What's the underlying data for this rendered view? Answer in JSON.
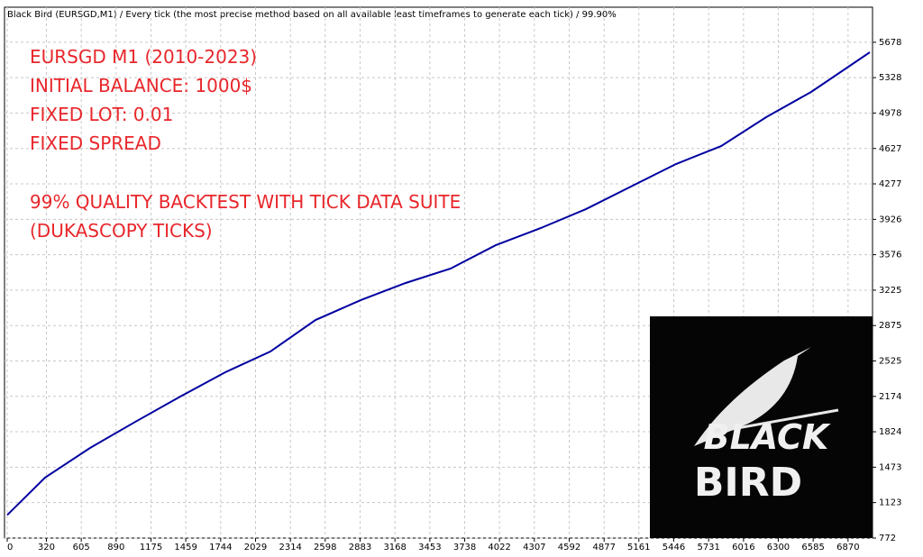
{
  "chart_data": {
    "type": "line",
    "title": "Black Bird (EURSGD,M1) / Every tick (the most precise method based on all available least timeframes to generate each tick) / 99.90%",
    "annotations": [
      "EURSGD M1 (2010-2023)",
      "INITIAL BALANCE: 1000$",
      "FIXED LOT: 0.01",
      "FIXED SPREAD",
      "99% QUALITY BACKTEST WITH TICK DATA SUITE",
      "(DUKASCOPY TICKS)"
    ],
    "logo": [
      "BLACK",
      "BIRD"
    ],
    "x": [
      0,
      309,
      677,
      1046,
      1414,
      1782,
      2150,
      2519,
      2887,
      3255,
      3623,
      3991,
      4360,
      4728,
      5096,
      5464,
      5833,
      6201,
      6569,
      7048
    ],
    "series": [
      {
        "color": "#0000a0",
        "values": [
          1000,
          1370,
          1664,
          1922,
          2172,
          2413,
          2618,
          2930,
          3126,
          3296,
          3439,
          3670,
          3840,
          4027,
          4250,
          4473,
          4651,
          4937,
          5187,
          5579
        ]
      }
    ],
    "xlim": [
      0,
      7070
    ],
    "xticks": [
      0,
      320,
      605,
      890,
      1175,
      1459,
      1744,
      2029,
      2314,
      2598,
      2883,
      3168,
      3453,
      3738,
      4022,
      4307,
      4592,
      4877,
      5161,
      5446,
      5731,
      6016,
      6300,
      6585,
      6870
    ],
    "ylim": [
      772,
      6025
    ],
    "yticks": [
      772,
      1123,
      1473,
      1824,
      2174,
      2525,
      2875,
      3225,
      3576,
      3926,
      4277,
      4627,
      4978,
      5328,
      5678
    ],
    "grid": true
  }
}
